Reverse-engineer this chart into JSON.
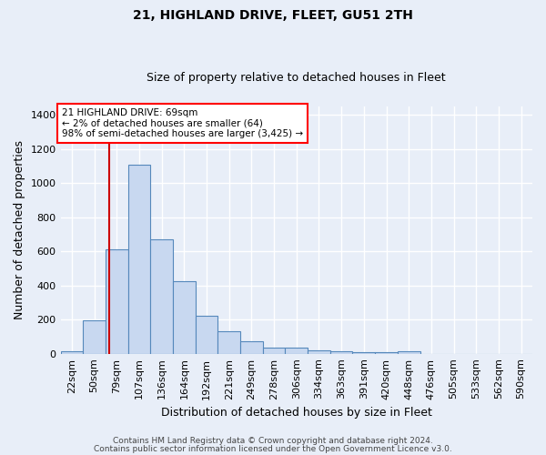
{
  "title1": "21, HIGHLAND DRIVE, FLEET, GU51 2TH",
  "title2": "Size of property relative to detached houses in Fleet",
  "xlabel": "Distribution of detached houses by size in Fleet",
  "ylabel": "Number of detached properties",
  "footnote1": "Contains HM Land Registry data © Crown copyright and database right 2024.",
  "footnote2": "Contains public sector information licensed under the Open Government Licence v3.0.",
  "annotation_line1": "21 HIGHLAND DRIVE: 69sqm",
  "annotation_line2": "← 2% of detached houses are smaller (64)",
  "annotation_line3": "98% of semi-detached houses are larger (3,425) →",
  "bar_color": "#c8d8f0",
  "bar_edge_color": "#5588bb",
  "background_color": "#e8eef8",
  "grid_color": "#ffffff",
  "vline_color": "#cc0000",
  "vline_x_index": 2,
  "categories": [
    "22sqm",
    "50sqm",
    "79sqm",
    "107sqm",
    "136sqm",
    "164sqm",
    "192sqm",
    "221sqm",
    "249sqm",
    "278sqm",
    "306sqm",
    "334sqm",
    "363sqm",
    "391sqm",
    "420sqm",
    "448sqm",
    "476sqm",
    "505sqm",
    "533sqm",
    "562sqm",
    "590sqm"
  ],
  "values": [
    15,
    195,
    610,
    1110,
    670,
    425,
    220,
    130,
    75,
    33,
    33,
    20,
    12,
    10,
    8,
    12,
    0,
    0,
    0,
    0,
    0
  ],
  "ylim": [
    0,
    1450
  ],
  "yticks": [
    0,
    200,
    400,
    600,
    800,
    1000,
    1200,
    1400
  ],
  "annotation_fontsize": 7.5,
  "title1_fontsize": 10,
  "title2_fontsize": 9,
  "xlabel_fontsize": 9,
  "ylabel_fontsize": 9,
  "footnote_fontsize": 6.5,
  "tick_fontsize": 8
}
